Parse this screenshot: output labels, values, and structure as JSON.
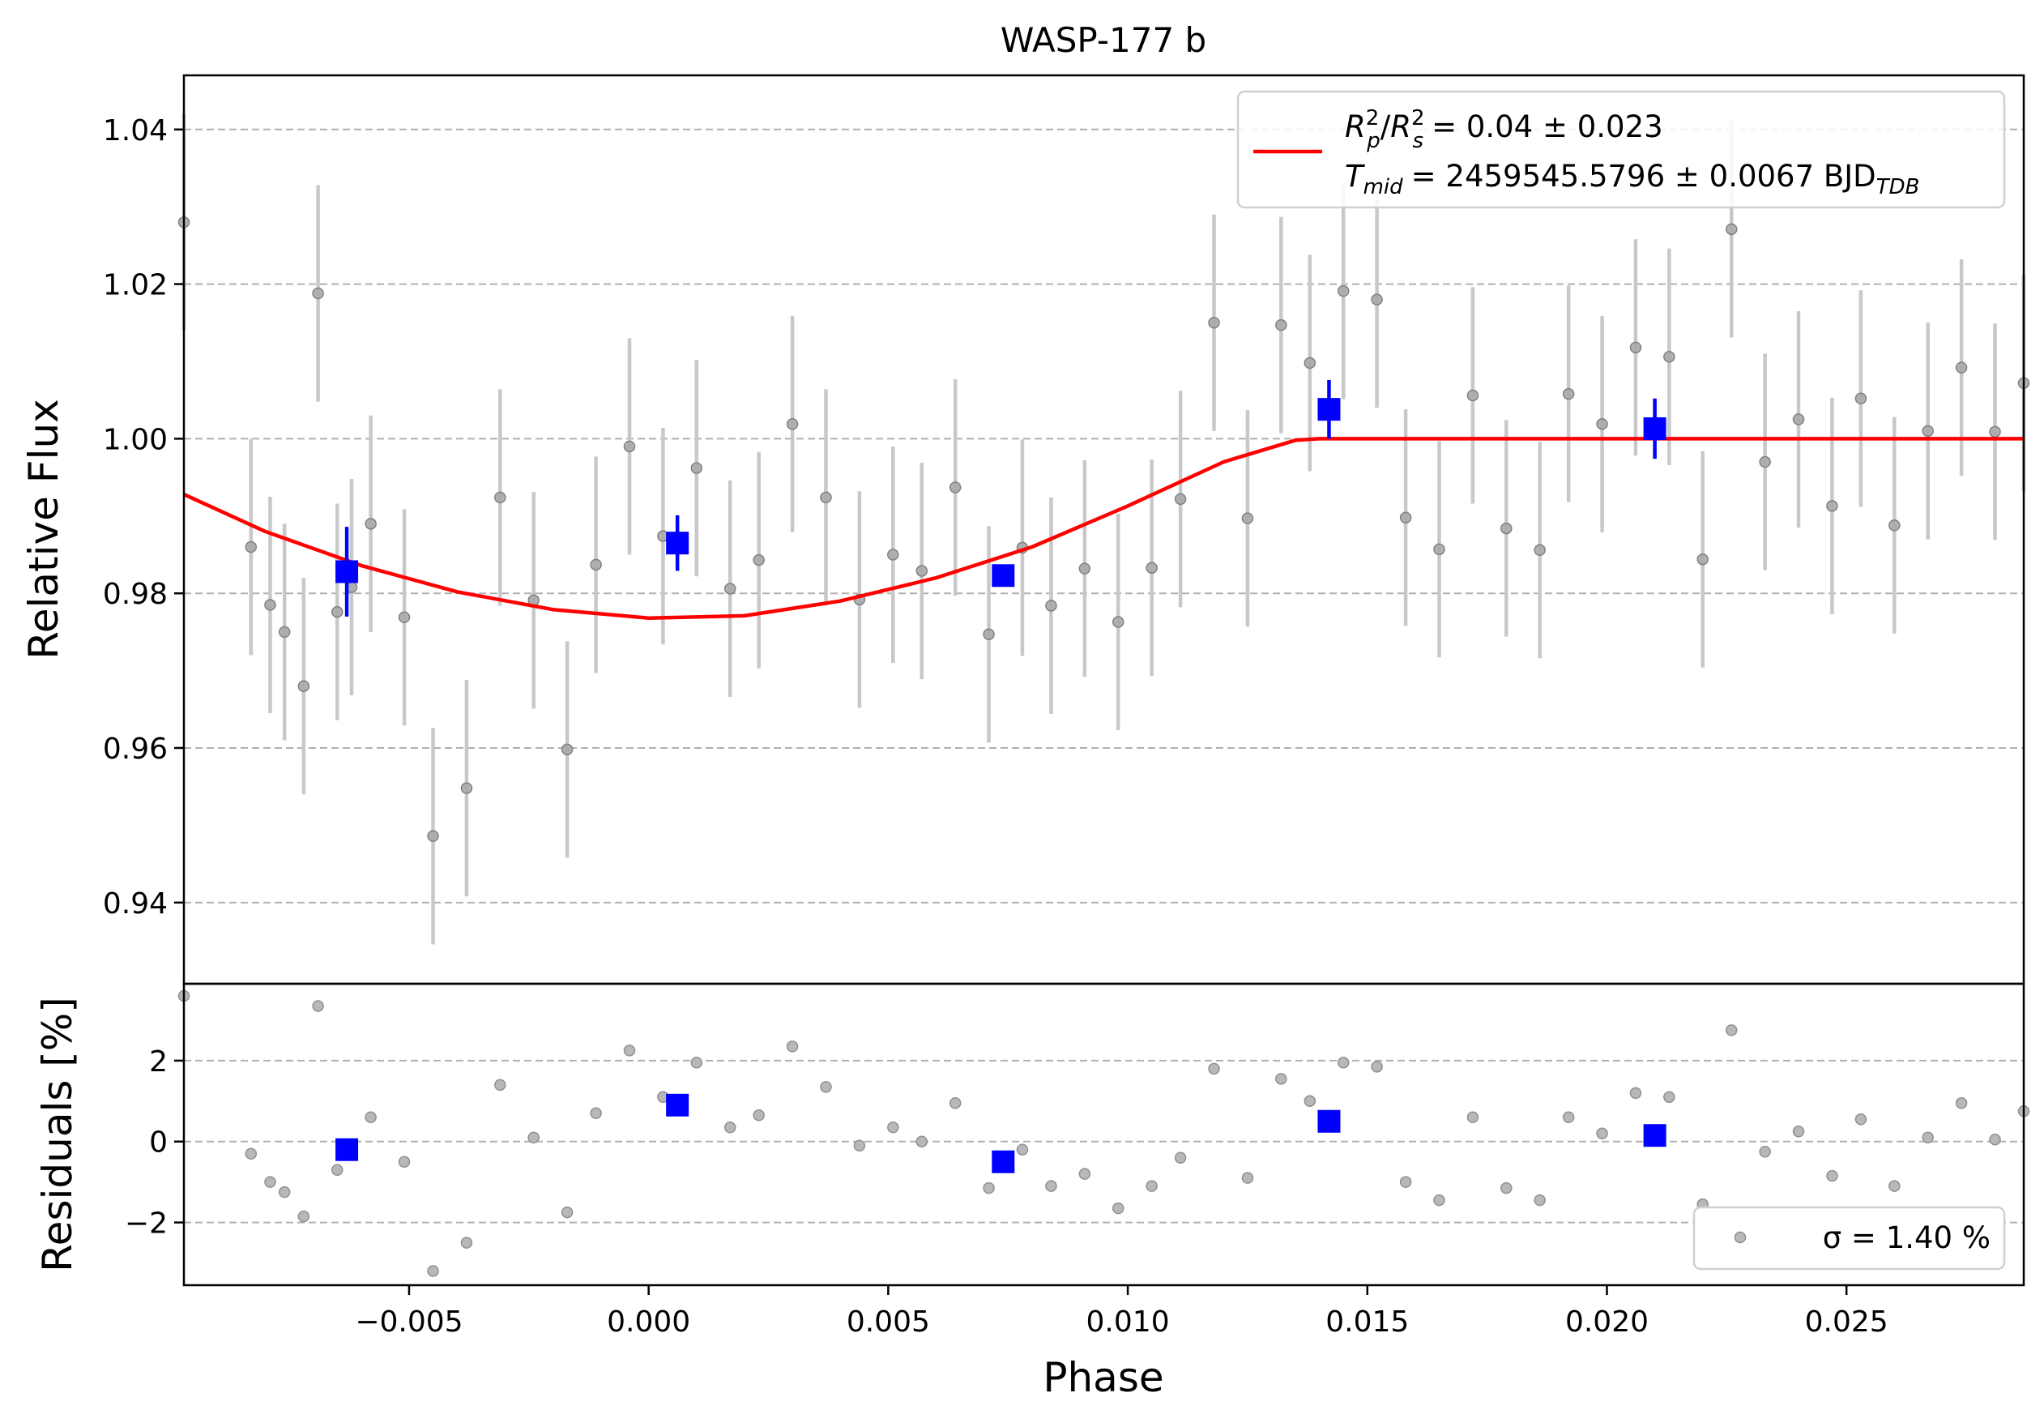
{
  "chart_data": [
    {
      "type": "scatter",
      "panel": "main",
      "title": "WASP-177 b",
      "xlabel": "",
      "ylabel": "Relative Flux",
      "xlim": [
        -0.0097,
        0.0287
      ],
      "ylim": [
        0.9295,
        1.047
      ],
      "grid": "horizontal dashed",
      "yticks": [
        0.94,
        0.96,
        0.98,
        1.0,
        1.02,
        1.04
      ],
      "ytick_labels": [
        "0.94",
        "0.96",
        "0.98",
        "1.00",
        "1.02",
        "1.04"
      ],
      "legend": {
        "placement": "upper-right",
        "line_color": "#ff0000",
        "rp_rs_label": "R",
        "rp_rs_value": "= 0.04 ± 0.023",
        "tmid_label": "T",
        "tmid_value": "= 2459545.5796 ± 0.0067 BJD",
        "tmid_unit_sub": "TDB"
      },
      "colors": {
        "raw": "#808080",
        "errorbar": "#c8c8c8",
        "binned": "#0000ff",
        "model": "#ff0000",
        "grid": "#b0b0b0"
      },
      "series": [
        {
          "kind": "raw",
          "points": [
            [
              -0.0097,
              1.028,
              0.014
            ],
            [
              -0.0083,
              0.986,
              0.014
            ],
            [
              -0.0079,
              0.9785,
              0.014
            ],
            [
              -0.0076,
              0.975,
              0.014
            ],
            [
              -0.0072,
              0.968,
              0.014
            ],
            [
              -0.0069,
              1.0188,
              0.014
            ],
            [
              -0.0065,
              0.9776,
              0.014
            ],
            [
              -0.0062,
              0.9808,
              0.014
            ],
            [
              -0.0058,
              0.989,
              0.014
            ],
            [
              -0.0051,
              0.9769,
              0.014
            ],
            [
              -0.0045,
              0.9486,
              0.014
            ],
            [
              -0.0038,
              0.9548,
              0.014
            ],
            [
              -0.0031,
              0.9924,
              0.014
            ],
            [
              -0.0024,
              0.9791,
              0.014
            ],
            [
              -0.0017,
              0.9598,
              0.014
            ],
            [
              -0.0011,
              0.9837,
              0.014
            ],
            [
              -0.0004,
              0.999,
              0.014
            ],
            [
              0.0003,
              0.9874,
              0.014
            ],
            [
              0.001,
              0.9962,
              0.014
            ],
            [
              0.0017,
              0.9806,
              0.014
            ],
            [
              0.0023,
              0.9843,
              0.014
            ],
            [
              0.003,
              1.0019,
              0.014
            ],
            [
              0.0037,
              0.9924,
              0.014
            ],
            [
              0.0044,
              0.9792,
              0.014
            ],
            [
              0.0051,
              0.985,
              0.014
            ],
            [
              0.0057,
              0.9829,
              0.014
            ],
            [
              0.0064,
              0.9937,
              0.014
            ],
            [
              0.0071,
              0.9747,
              0.014
            ],
            [
              0.0078,
              0.9859,
              0.014
            ],
            [
              0.0084,
              0.9784,
              0.014
            ],
            [
              0.0091,
              0.9832,
              0.014
            ],
            [
              0.0098,
              0.9763,
              0.014
            ],
            [
              0.0105,
              0.9833,
              0.014
            ],
            [
              0.0111,
              0.9922,
              0.014
            ],
            [
              0.0118,
              1.015,
              0.014
            ],
            [
              0.0125,
              0.9897,
              0.014
            ],
            [
              0.0132,
              1.0147,
              0.014
            ],
            [
              0.0138,
              1.0098,
              0.014
            ],
            [
              0.0145,
              1.0191,
              0.014
            ],
            [
              0.0152,
              1.018,
              0.014
            ],
            [
              0.0158,
              0.9898,
              0.014
            ],
            [
              0.0165,
              0.9857,
              0.014
            ],
            [
              0.0172,
              1.0056,
              0.014
            ],
            [
              0.0179,
              0.9884,
              0.014
            ],
            [
              0.0186,
              0.9856,
              0.014
            ],
            [
              0.0192,
              1.0058,
              0.014
            ],
            [
              0.0199,
              1.0019,
              0.014
            ],
            [
              0.0206,
              1.0118,
              0.014
            ],
            [
              0.0213,
              1.0106,
              0.014
            ],
            [
              0.022,
              0.9844,
              0.014
            ],
            [
              0.0226,
              1.0271,
              0.014
            ],
            [
              0.0233,
              0.997,
              0.014
            ],
            [
              0.024,
              1.0025,
              0.014
            ],
            [
              0.0247,
              0.9913,
              0.014
            ],
            [
              0.0253,
              1.0052,
              0.014
            ],
            [
              0.026,
              0.9888,
              0.014
            ],
            [
              0.0267,
              1.001,
              0.014
            ],
            [
              0.0274,
              1.0092,
              0.014
            ],
            [
              0.0281,
              1.0009,
              0.014
            ],
            [
              0.0287,
              1.0072,
              0.014
            ]
          ]
        },
        {
          "kind": "binned",
          "points": [
            [
              -0.0063,
              0.9828,
              0.0058
            ],
            [
              0.0006,
              0.9865,
              0.0036
            ],
            [
              0.0074,
              0.9823,
              0.0
            ],
            [
              0.0142,
              1.0038,
              0.0038
            ],
            [
              0.021,
              1.0013,
              0.0039
            ]
          ]
        }
      ],
      "model": {
        "name": "",
        "x": [
          -0.0097,
          -0.008,
          -0.006,
          -0.004,
          -0.002,
          0.0,
          0.002,
          0.004,
          0.006,
          0.008,
          0.01,
          0.012,
          0.0135,
          0.014,
          0.0287
        ],
        "y": [
          0.9928,
          0.988,
          0.9836,
          0.9802,
          0.9779,
          0.9768,
          0.9771,
          0.979,
          0.982,
          0.986,
          0.9913,
          0.997,
          0.9998,
          1.0,
          1.0
        ]
      }
    },
    {
      "type": "scatter",
      "panel": "residuals",
      "xlabel": "Phase",
      "ylabel": "Residuals [%]",
      "xlim": [
        -0.0097,
        0.0287
      ],
      "ylim": [
        -3.55,
        3.9
      ],
      "grid": "horizontal dashed",
      "xticks": [
        -0.005,
        0.0,
        0.005,
        0.01,
        0.015,
        0.02,
        0.025
      ],
      "xtick_labels": [
        "−0.005",
        "0.000",
        "0.005",
        "0.010",
        "0.015",
        "0.020",
        "0.025"
      ],
      "yticks": [
        -2,
        0,
        2
      ],
      "ytick_labels": [
        "−2",
        "0",
        "2"
      ],
      "legend": {
        "placement": "lower-right",
        "label": "σ = 1.40 %"
      },
      "series": [
        {
          "kind": "raw",
          "points": [
            [
              -0.0097,
              3.6
            ],
            [
              -0.0083,
              -0.3
            ],
            [
              -0.0079,
              -1.0
            ],
            [
              -0.0076,
              -1.25
            ],
            [
              -0.0072,
              -1.85
            ],
            [
              -0.0069,
              3.35
            ],
            [
              -0.0065,
              -0.7
            ],
            [
              -0.0062,
              -0.3
            ],
            [
              -0.0058,
              0.6
            ],
            [
              -0.0051,
              -0.5
            ],
            [
              -0.0045,
              -3.2
            ],
            [
              -0.0038,
              -2.5
            ],
            [
              -0.0031,
              1.4
            ],
            [
              -0.0024,
              0.1
            ],
            [
              -0.0017,
              -1.75
            ],
            [
              -0.0011,
              0.7
            ],
            [
              -0.0004,
              2.25
            ],
            [
              0.0003,
              1.1
            ],
            [
              0.001,
              1.95
            ],
            [
              0.0017,
              0.35
            ],
            [
              0.0023,
              0.65
            ],
            [
              0.003,
              2.35
            ],
            [
              0.0037,
              1.35
            ],
            [
              0.0044,
              -0.1
            ],
            [
              0.0051,
              0.35
            ],
            [
              0.0057,
              0.0
            ],
            [
              0.0064,
              0.95
            ],
            [
              0.0071,
              -1.15
            ],
            [
              0.0078,
              -0.2
            ],
            [
              0.0084,
              -1.1
            ],
            [
              0.0091,
              -0.8
            ],
            [
              0.0098,
              -1.65
            ],
            [
              0.0105,
              -1.1
            ],
            [
              0.0111,
              -0.4
            ],
            [
              0.0118,
              1.8
            ],
            [
              0.0125,
              -0.9
            ],
            [
              0.0132,
              1.55
            ],
            [
              0.0138,
              1.0
            ],
            [
              0.0145,
              1.95
            ],
            [
              0.0152,
              1.85
            ],
            [
              0.0158,
              -1.0
            ],
            [
              0.0165,
              -1.45
            ],
            [
              0.0172,
              0.6
            ],
            [
              0.0179,
              -1.15
            ],
            [
              0.0186,
              -1.45
            ],
            [
              0.0192,
              0.6
            ],
            [
              0.0199,
              0.2
            ],
            [
              0.0206,
              1.2
            ],
            [
              0.0213,
              1.1
            ],
            [
              0.022,
              -1.55
            ],
            [
              0.0226,
              2.75
            ],
            [
              0.0233,
              -0.25
            ],
            [
              0.024,
              0.25
            ],
            [
              0.0247,
              -0.85
            ],
            [
              0.0253,
              0.55
            ],
            [
              0.026,
              -1.1
            ],
            [
              0.0267,
              0.1
            ],
            [
              0.0274,
              0.95
            ],
            [
              0.0281,
              0.05
            ],
            [
              0.0287,
              0.75
            ]
          ]
        },
        {
          "kind": "binned",
          "points": [
            [
              -0.0063,
              -0.2
            ],
            [
              0.0006,
              0.9
            ],
            [
              0.0074,
              -0.5
            ],
            [
              0.0142,
              0.5
            ],
            [
              0.021,
              0.15
            ]
          ]
        }
      ]
    }
  ]
}
